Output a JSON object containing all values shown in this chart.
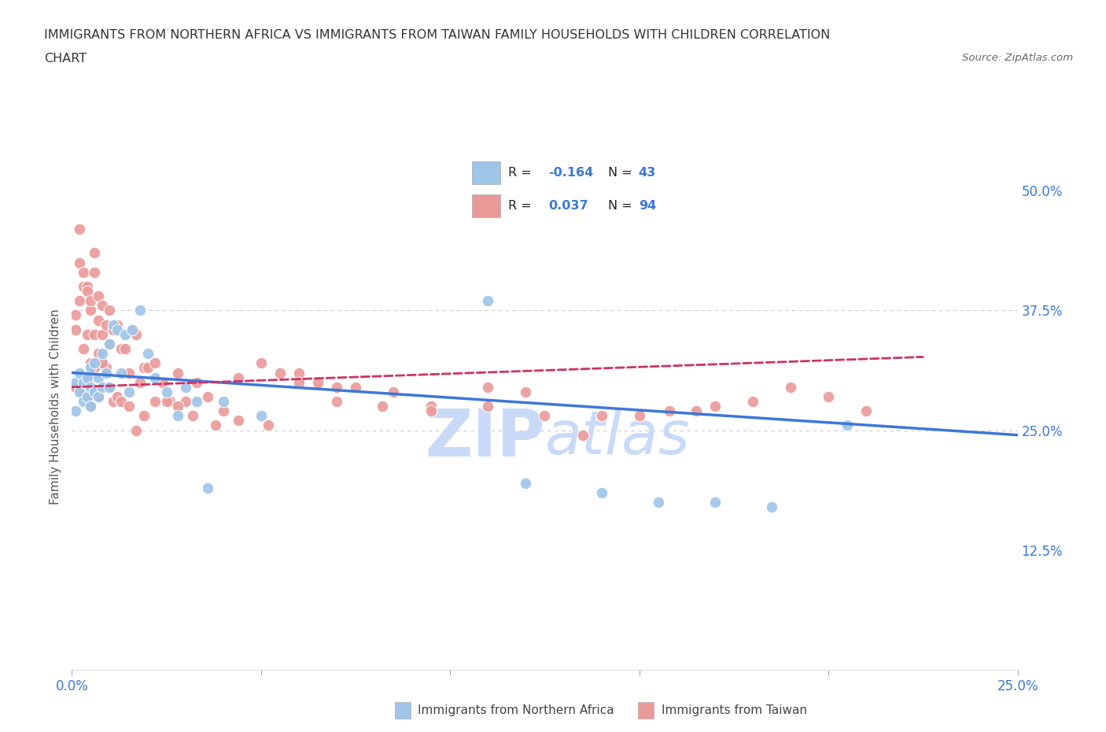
{
  "title_line1": "IMMIGRANTS FROM NORTHERN AFRICA VS IMMIGRANTS FROM TAIWAN FAMILY HOUSEHOLDS WITH CHILDREN CORRELATION",
  "title_line2": "CHART",
  "source_text": "Source: ZipAtlas.com",
  "ylabel": "Family Households with Children",
  "legend_label_blue": "Immigrants from Northern Africa",
  "legend_label_pink": "Immigrants from Taiwan",
  "R_blue": -0.164,
  "N_blue": 43,
  "R_pink": 0.037,
  "N_pink": 94,
  "xlim": [
    0.0,
    0.25
  ],
  "ylim": [
    0.0,
    0.55
  ],
  "xticks": [
    0.0,
    0.05,
    0.1,
    0.15,
    0.2,
    0.25
  ],
  "yticks_right": [
    0.125,
    0.25,
    0.375,
    0.5
  ],
  "ytick_right_labels": [
    "12.5%",
    "25.0%",
    "37.5%",
    "50.0%"
  ],
  "hlines": [
    0.375,
    0.25
  ],
  "color_blue": "#9fc5e8",
  "color_pink": "#ea9999",
  "color_trend_blue": "#3c78d8",
  "color_trend_pink": "#cc3366",
  "watermark_color": "#c9daf8",
  "blue_intercept": 0.31,
  "blue_slope": -0.26,
  "pink_intercept": 0.295,
  "pink_slope": 0.14,
  "blue_points_x": [
    0.001,
    0.001,
    0.002,
    0.002,
    0.003,
    0.003,
    0.004,
    0.004,
    0.005,
    0.005,
    0.005,
    0.006,
    0.006,
    0.007,
    0.007,
    0.008,
    0.008,
    0.009,
    0.01,
    0.01,
    0.011,
    0.012,
    0.013,
    0.014,
    0.015,
    0.016,
    0.018,
    0.02,
    0.022,
    0.025,
    0.028,
    0.03,
    0.033,
    0.036,
    0.04,
    0.05,
    0.11,
    0.12,
    0.14,
    0.155,
    0.17,
    0.185,
    0.205
  ],
  "blue_points_y": [
    0.3,
    0.27,
    0.31,
    0.29,
    0.3,
    0.28,
    0.305,
    0.285,
    0.315,
    0.295,
    0.275,
    0.32,
    0.29,
    0.305,
    0.285,
    0.33,
    0.295,
    0.31,
    0.34,
    0.295,
    0.36,
    0.355,
    0.31,
    0.35,
    0.29,
    0.355,
    0.375,
    0.33,
    0.305,
    0.29,
    0.265,
    0.295,
    0.28,
    0.19,
    0.28,
    0.265,
    0.385,
    0.195,
    0.185,
    0.175,
    0.175,
    0.17,
    0.255
  ],
  "pink_points_x": [
    0.001,
    0.001,
    0.001,
    0.002,
    0.002,
    0.002,
    0.003,
    0.003,
    0.003,
    0.004,
    0.004,
    0.004,
    0.005,
    0.005,
    0.005,
    0.005,
    0.006,
    0.006,
    0.006,
    0.007,
    0.007,
    0.007,
    0.008,
    0.008,
    0.009,
    0.009,
    0.01,
    0.01,
    0.011,
    0.012,
    0.013,
    0.014,
    0.015,
    0.016,
    0.017,
    0.018,
    0.019,
    0.02,
    0.022,
    0.024,
    0.026,
    0.028,
    0.03,
    0.033,
    0.036,
    0.04,
    0.044,
    0.05,
    0.055,
    0.06,
    0.065,
    0.07,
    0.075,
    0.085,
    0.095,
    0.11,
    0.12,
    0.135,
    0.15,
    0.165,
    0.003,
    0.004,
    0.005,
    0.006,
    0.007,
    0.008,
    0.009,
    0.01,
    0.011,
    0.012,
    0.013,
    0.015,
    0.017,
    0.019,
    0.022,
    0.025,
    0.028,
    0.032,
    0.038,
    0.044,
    0.052,
    0.06,
    0.07,
    0.082,
    0.095,
    0.11,
    0.125,
    0.14,
    0.158,
    0.17,
    0.18,
    0.19,
    0.2,
    0.21
  ],
  "pink_points_y": [
    0.37,
    0.355,
    0.295,
    0.425,
    0.46,
    0.385,
    0.4,
    0.415,
    0.335,
    0.4,
    0.395,
    0.35,
    0.375,
    0.305,
    0.385,
    0.32,
    0.435,
    0.415,
    0.35,
    0.365,
    0.39,
    0.33,
    0.38,
    0.35,
    0.36,
    0.315,
    0.375,
    0.34,
    0.355,
    0.36,
    0.335,
    0.335,
    0.31,
    0.355,
    0.35,
    0.3,
    0.315,
    0.315,
    0.32,
    0.3,
    0.28,
    0.31,
    0.28,
    0.3,
    0.285,
    0.27,
    0.305,
    0.32,
    0.31,
    0.31,
    0.3,
    0.295,
    0.295,
    0.29,
    0.275,
    0.295,
    0.29,
    0.245,
    0.265,
    0.27,
    0.29,
    0.285,
    0.275,
    0.315,
    0.285,
    0.32,
    0.295,
    0.295,
    0.28,
    0.285,
    0.28,
    0.275,
    0.25,
    0.265,
    0.28,
    0.28,
    0.275,
    0.265,
    0.255,
    0.26,
    0.255,
    0.3,
    0.28,
    0.275,
    0.27,
    0.275,
    0.265,
    0.265,
    0.27,
    0.275,
    0.28,
    0.295,
    0.285,
    0.27
  ]
}
